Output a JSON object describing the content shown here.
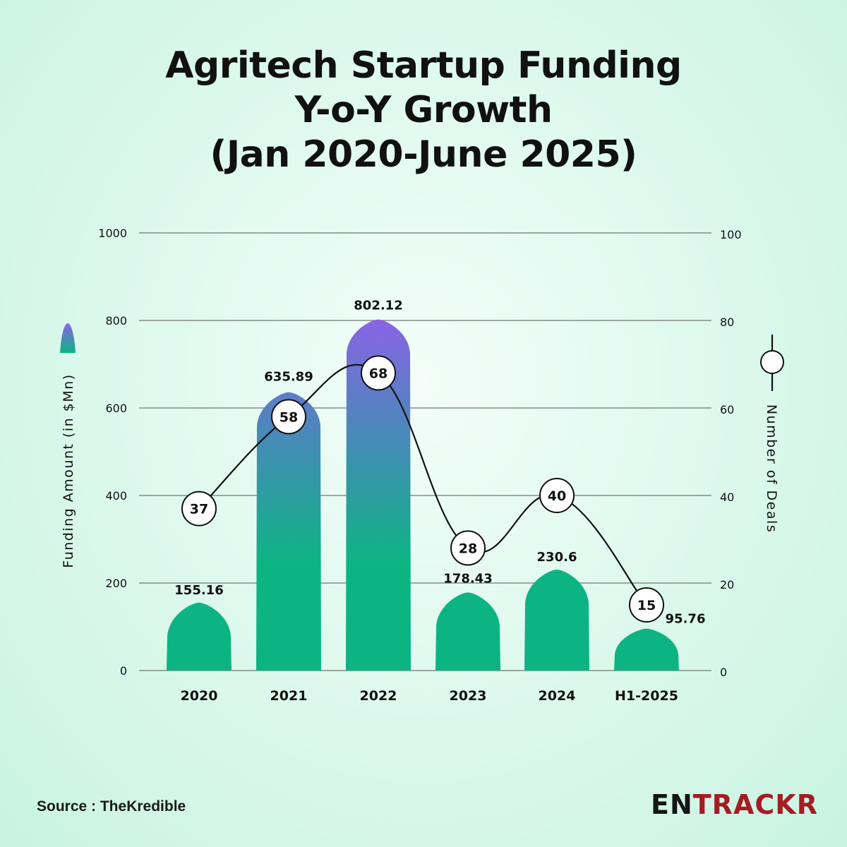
{
  "title": {
    "line1": "Agritech Startup Funding",
    "line2": "Y-o-Y Growth",
    "line3": "(Jan 2020-June 2025)"
  },
  "source": "Source : TheKredible",
  "logo": {
    "part1": "EN",
    "part2": "TRACKR"
  },
  "colors": {
    "bar_top": "#8a63e6",
    "bar_mid": "#3f8fb2",
    "bar_bottom": "#0db483",
    "line": "#111111",
    "grid": "#6f7772"
  },
  "chart_data": {
    "type": "bar",
    "categories": [
      "2020",
      "2021",
      "2022",
      "2023",
      "2024",
      "H1-2025"
    ],
    "series": [
      {
        "name": "Funding Amount (in $Mn)",
        "axis": "left",
        "type": "bar",
        "values": [
          155.16,
          635.89,
          802.12,
          178.43,
          230.6,
          95.76
        ],
        "labels": [
          "155.16",
          "635.89",
          "802.12",
          "178.43",
          "230.6",
          "95.76"
        ]
      },
      {
        "name": "Number of Deals",
        "axis": "right",
        "type": "line",
        "values": [
          37,
          58,
          68,
          28,
          40,
          15
        ],
        "labels": [
          "37",
          "58",
          "68",
          "28",
          "40",
          "15"
        ]
      }
    ],
    "ylabel": "Funding Amount (in $Mn)",
    "y2label": "Number of Deals",
    "ylim": [
      0,
      1000
    ],
    "y2lim": [
      0,
      100
    ],
    "yticks": [
      "0",
      "200",
      "400",
      "600",
      "800",
      "1000"
    ],
    "y2ticks": [
      "0",
      "20",
      "40",
      "60",
      "80",
      "100"
    ],
    "grid": true,
    "legend": "right and left of plot, beside axis titles"
  }
}
